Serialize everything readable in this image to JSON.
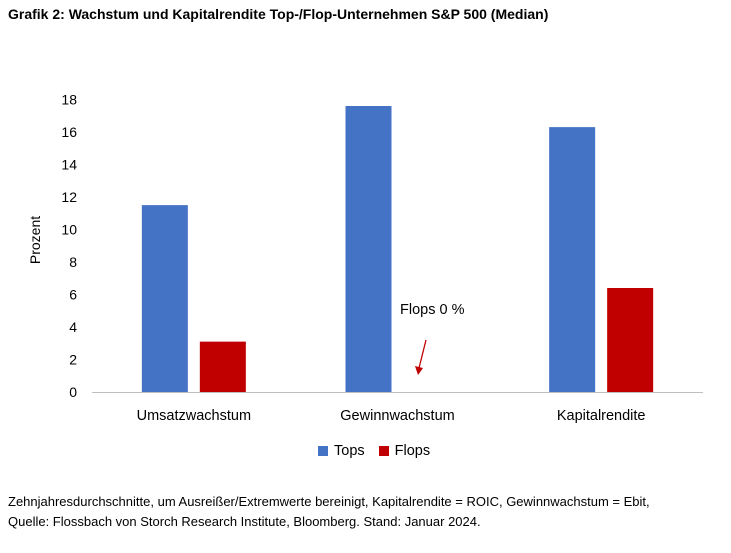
{
  "title": "Grafik 2: Wachstum und Kapitalrendite Top-/Flop-Unternehmen S&P 500 (Median)",
  "chart_data": {
    "type": "bar",
    "categories": [
      "Umsatzwachstum",
      "Gewinnwachstum",
      "Kapitalrendite"
    ],
    "series": [
      {
        "name": "Tops",
        "values": [
          11.5,
          17.6,
          16.3
        ],
        "color": "#4472C4"
      },
      {
        "name": "Flops",
        "values": [
          3.1,
          0,
          6.4
        ],
        "color": "#C00000"
      }
    ],
    "ylabel": "Prozent",
    "ylim": [
      0,
      18
    ],
    "yticks": [
      0,
      2,
      4,
      6,
      8,
      10,
      12,
      14,
      16,
      18
    ],
    "grid": false,
    "legend_position": "bottom",
    "annotation": "Flops 0 %"
  },
  "footnote": {
    "line1": "Zehnjahresdurchschnitte, um Ausreißer/Extremwerte bereinigt, Kapitalrendite = ROIC, Gewinnwachstum = Ebit,",
    "line2": "Quelle: Flossbach von Storch Research Institute, Bloomberg. Stand: Januar 2024."
  }
}
